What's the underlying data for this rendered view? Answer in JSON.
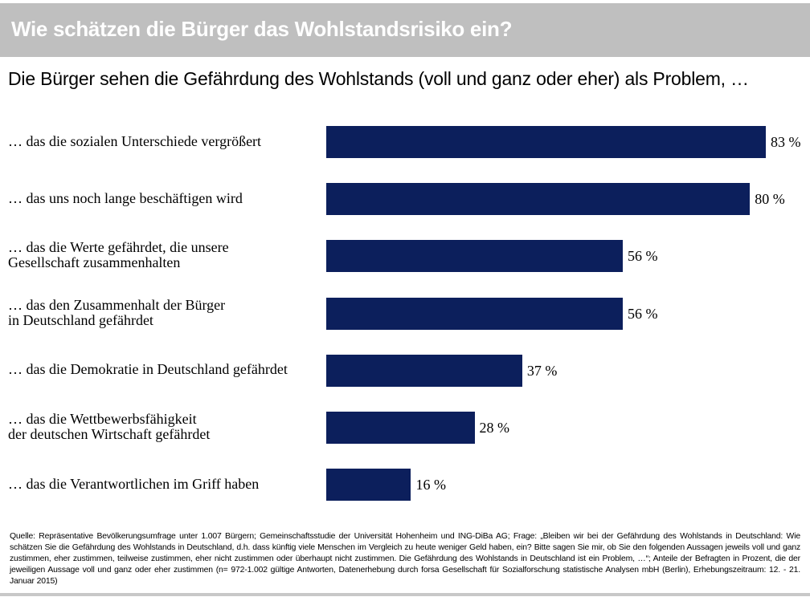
{
  "header": {
    "title": "Wie schätzen die Bürger das Wohlstandsrisiko ein?"
  },
  "chart_data": {
    "type": "bar",
    "orientation": "horizontal",
    "title": "Die Bürger sehen die Gefährdung des Wohlstands (voll und ganz oder eher) als Problem, …",
    "categories": [
      "… das die sozialen Unterschiede vergrößert",
      "… das uns noch lange beschäftigen wird",
      "… das die Werte gefährdet, die unsere Gesellschaft zusammenhalten",
      "… das den Zusammenhalt der Bürger in Deutschland gefährdet",
      "… das die Demokratie in Deutschland gefährdet",
      "… das die Wettbewerbsfähigkeit der deutschen Wirtschaft gefährdet",
      "… das die Verantwortlichen im Griff haben"
    ],
    "label_lines": [
      [
        "… das die sozialen Unterschiede vergrößert"
      ],
      [
        "… das uns noch lange beschäftigen wird"
      ],
      [
        "… das die Werte gefährdet, die unsere",
        "Gesellschaft zusammenhalten"
      ],
      [
        "… das den Zusammenhalt der Bürger",
        "in Deutschland gefährdet"
      ],
      [
        "… das die Demokratie in Deutschland gefährdet"
      ],
      [
        "… das die Wettbewerbsfähigkeit",
        "der deutschen Wirtschaft gefährdet"
      ],
      [
        "… das die Verantwortlichen im Griff haben"
      ]
    ],
    "values": [
      83,
      80,
      56,
      56,
      37,
      28,
      16
    ],
    "data_labels": [
      "83 %",
      "80 %",
      "56 %",
      "56 %",
      "37 %",
      "28 %",
      "16 %"
    ],
    "unit": "%",
    "xlim": [
      0,
      83
    ],
    "grid": false,
    "bar_color": "#0c1f5c"
  },
  "footnote": "Quelle: Repräsentative Bevölkerungsumfrage unter 1.007 Bürgern; Gemeinschaftsstudie der Universität Hohenheim und ING-DiBa AG; Frage: „Bleiben wir bei der Gefährdung des Wohlstands in Deutschland: Wie schätzen Sie die Gefährdung des Wohlstands in Deutschland, d.h. dass künftig viele Menschen im Vergleich zu heute weniger Geld haben, ein? Bitte sagen Sie mir, ob Sie den folgenden Aussagen jeweils voll und ganz zustimmen, eher zustimmen, teilweise zustimmen, eher nicht zustimmen oder überhaupt nicht zustimmen. Die Gefährdung des Wohlstands in Deutschland ist ein Problem, …“; Anteile der Befragten in Prozent, die der jeweiligen Aussage voll und ganz oder eher zustimmen (n= 972-1.002 gültige Antworten, Datenerhebung durch forsa Gesellschaft für Sozialforschung statistische Analysen mbH (Berlin), Erhebungszeitraum: 12. - 21. Januar 2015)"
}
